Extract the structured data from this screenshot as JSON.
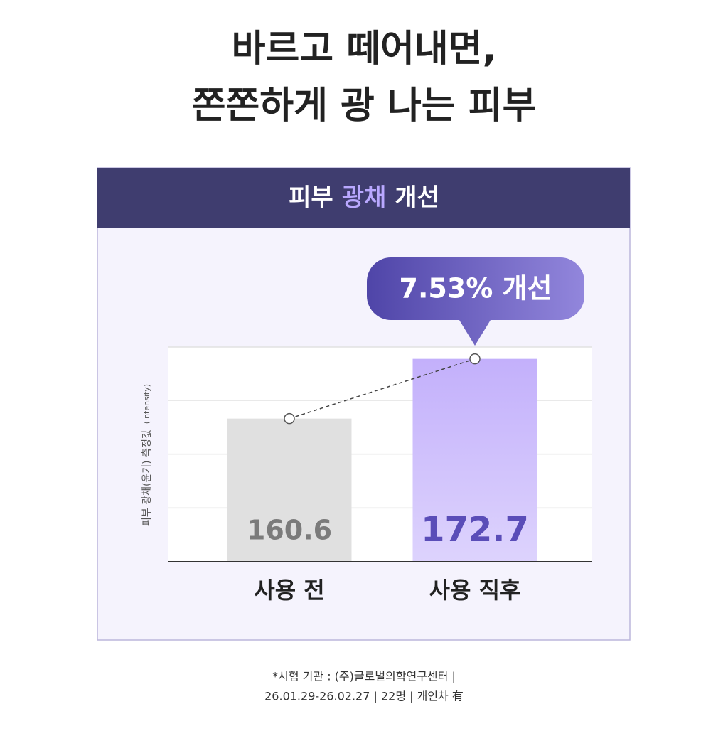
{
  "header": {
    "title_lines": [
      "바르고 떼어내면,",
      "쫀쫀하게 광 나는 피부"
    ]
  },
  "chart_data": {
    "type": "bar",
    "title_parts": [
      "피부",
      "광채",
      "개선"
    ],
    "annotation": "7.53% 개선",
    "y_label": "피부 광채(윤기) 측정값",
    "y_label_unit": "(intensity)",
    "categories": [
      "사용 전",
      "사용 직후"
    ],
    "values": [
      160.6,
      172.7
    ],
    "colors": [
      "#e0e0e0",
      "#c6b4fb"
    ],
    "label_colors": [
      "#7b7b7b",
      "#5a4db8"
    ],
    "ylim": [
      131.6,
      175.1
    ],
    "yticks": [
      142.5,
      153.4,
      164.3,
      175.1
    ],
    "grid": true
  },
  "footnote": [
    "*시험 기관 : (주)글로벌의학연구센터 |",
    "26.01.29-26.02.27 | 22명 | 개인차 有"
  ]
}
